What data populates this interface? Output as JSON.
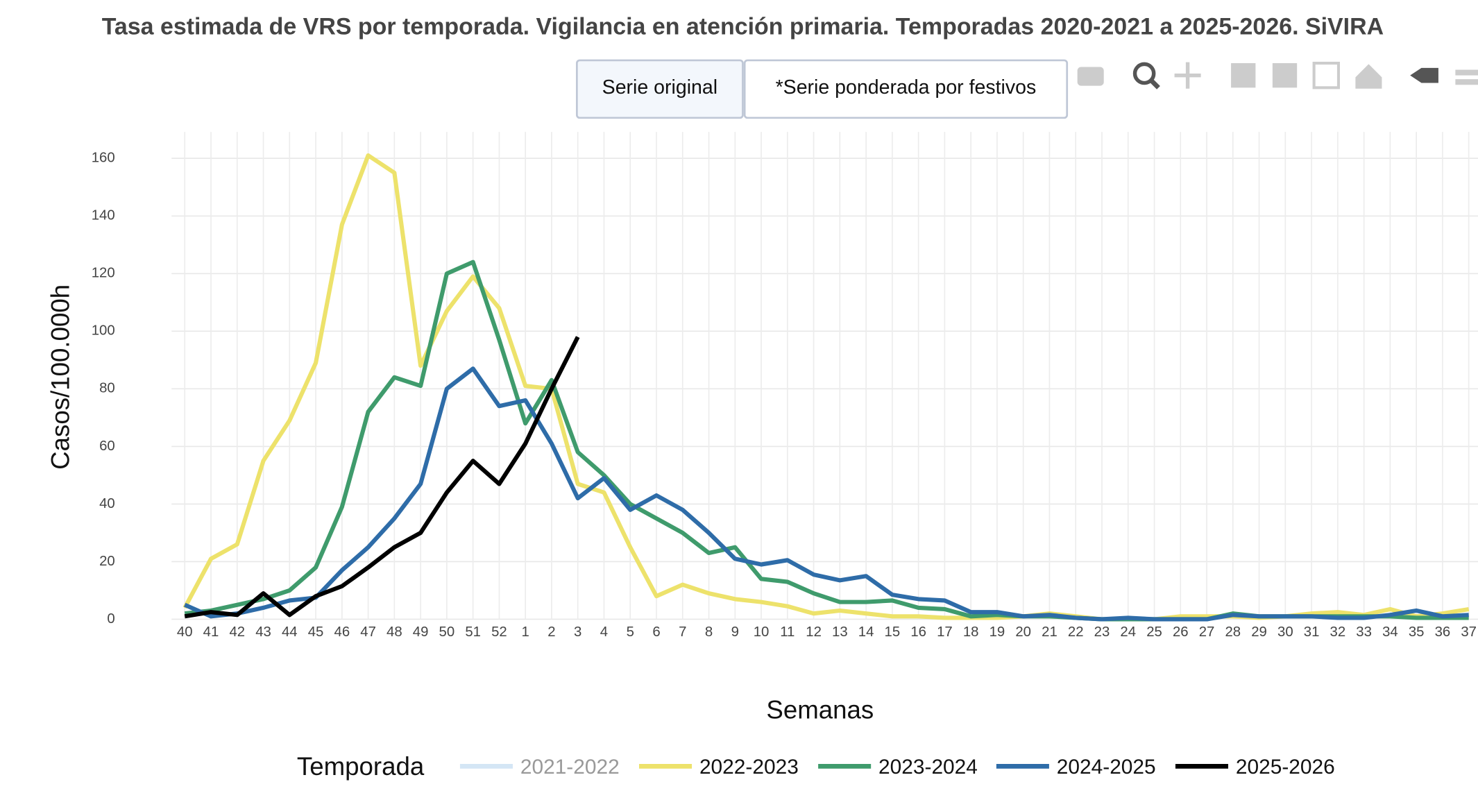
{
  "chart_data": {
    "type": "line",
    "title": "Tasa estimada de VRS por temporada. Vigilancia en atención primaria. Temporadas 2020-2021 a 2025-2026. SiVIRA",
    "buttons": [
      "Serie original",
      "*Serie ponderada por festivos"
    ],
    "x_label": "Semanas",
    "y_label": "Casos/100.000h",
    "legend_title": "Temporada",
    "grid": true,
    "categories": [
      "40",
      "41",
      "42",
      "43",
      "44",
      "45",
      "46",
      "47",
      "48",
      "49",
      "50",
      "51",
      "52",
      "1",
      "2",
      "3",
      "4",
      "5",
      "6",
      "7",
      "8",
      "9",
      "10",
      "11",
      "12",
      "13",
      "14",
      "15",
      "16",
      "17",
      "18",
      "19",
      "20",
      "21",
      "22",
      "23",
      "24",
      "25",
      "26",
      "27",
      "28",
      "29",
      "30",
      "31",
      "32",
      "33",
      "34",
      "35",
      "36",
      "37"
    ],
    "ylim": [
      0,
      160
    ],
    "yticks": [
      0,
      20,
      40,
      60,
      80,
      100,
      120,
      140,
      160
    ],
    "series": [
      {
        "name": "2021-2022",
        "color": "#b9d7ef",
        "visible": false,
        "values": [
          null,
          null,
          null,
          null,
          null,
          null,
          null,
          null,
          null,
          null,
          null,
          null,
          null,
          null,
          null,
          null,
          null,
          null,
          null,
          null,
          null,
          null,
          null,
          null,
          null,
          null,
          null,
          null,
          null,
          null,
          null,
          null,
          null,
          null,
          null,
          null,
          null,
          null,
          null,
          null,
          null,
          null,
          null,
          null,
          null,
          null,
          null,
          null,
          null,
          null
        ]
      },
      {
        "name": "2022-2023",
        "color": "#ede26b",
        "visible": true,
        "values": [
          4,
          21,
          26,
          55,
          69,
          89,
          137,
          161,
          155,
          88,
          107,
          119,
          108,
          81,
          80,
          47,
          44,
          25,
          8,
          12,
          9,
          7,
          6,
          4.5,
          2,
          3,
          2,
          1,
          1,
          0.5,
          0.5,
          0.5,
          1,
          2,
          1,
          0,
          0,
          0,
          1,
          1,
          1,
          0.5,
          1,
          2,
          2.5,
          1.5,
          3.5,
          1,
          2,
          3.5
        ]
      },
      {
        "name": "2023-2024",
        "color": "#3f9b6c",
        "visible": true,
        "values": [
          2,
          3,
          5,
          7,
          10,
          18,
          39,
          72,
          84,
          81,
          120,
          124,
          97,
          68,
          83,
          58,
          50,
          40,
          35,
          30,
          23,
          25,
          14,
          13,
          9,
          6,
          6,
          6.5,
          4,
          3.5,
          1,
          1.5,
          1,
          1,
          0.5,
          0,
          0,
          0,
          0,
          0,
          2,
          1,
          1,
          1,
          1,
          1,
          1,
          0.5,
          0.5,
          0.5
        ]
      },
      {
        "name": "2024-2025",
        "color": "#2e6ca8",
        "visible": true,
        "values": [
          5,
          1,
          2,
          4,
          6.5,
          7.5,
          17,
          25,
          35,
          47,
          80,
          87,
          74,
          76,
          61,
          42,
          49,
          38,
          43,
          38,
          30,
          21,
          19,
          20.5,
          15.5,
          13.5,
          15,
          8.5,
          7,
          6.5,
          2.5,
          2.5,
          1,
          1.5,
          0.5,
          0,
          0.5,
          0,
          0,
          0,
          1.5,
          1,
          1,
          1,
          0.5,
          0.5,
          1.5,
          3,
          1,
          1.5
        ]
      },
      {
        "name": "2025-2026",
        "color": "#000000",
        "visible": true,
        "values": [
          1,
          2.5,
          1.5,
          9,
          1.5,
          8,
          11.5,
          18,
          25,
          30,
          44,
          55,
          47,
          61,
          80,
          98,
          null,
          null,
          null,
          null,
          null,
          null,
          null,
          null,
          null,
          null,
          null,
          null,
          null,
          null,
          null,
          null,
          null,
          null,
          null,
          null,
          null,
          null,
          null,
          null,
          null,
          null,
          null,
          null,
          null,
          null,
          null,
          null,
          null,
          null
        ]
      }
    ]
  }
}
